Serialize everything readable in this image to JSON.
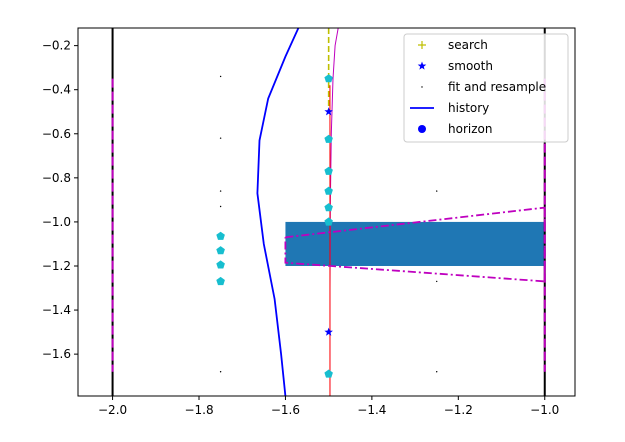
{
  "chart_data": {
    "type": "line",
    "title": "",
    "xlabel": "",
    "ylabel": "",
    "xlim": [
      -2.08,
      -0.93
    ],
    "ylim": [
      -1.79,
      -0.12
    ],
    "grid": false,
    "legend_position": "top-right",
    "xticks": [
      -2.0,
      -1.8,
      -1.6,
      -1.4,
      -1.2,
      -1.0
    ],
    "xtick_labels": [
      "−2.0",
      "−1.8",
      "−1.6",
      "−1.4",
      "−1.2",
      "−1.0"
    ],
    "yticks": [
      -0.2,
      -0.4,
      -0.6,
      -0.8,
      -1.0,
      -1.2,
      -1.4,
      -1.6
    ],
    "ytick_labels": [
      "−0.2",
      "−0.4",
      "−0.6",
      "−0.8",
      "−1.0",
      "−1.2",
      "−1.4",
      "−1.6"
    ],
    "legend": [
      {
        "label": "search",
        "marker": "plus",
        "color": "#bfbf00"
      },
      {
        "label": "smooth",
        "marker": "star",
        "color": "#0000ff"
      },
      {
        "label": "fit and resample",
        "marker": "dot",
        "color": "#000000"
      },
      {
        "label": "history",
        "marker": "line",
        "color": "#0000ff"
      },
      {
        "label": "horizon",
        "marker": "circle",
        "color": "#0000ff"
      }
    ],
    "rectangle": {
      "x0": -1.6,
      "x1": -1.0,
      "y0": -1.2,
      "y1": -1.0,
      "color": "#1f77b4"
    },
    "vertical_black_lines": [
      -2.0,
      -1.0
    ],
    "magenta_dashed_verticals": [
      {
        "x": -2.0,
        "y0": -1.68,
        "y1": -0.35
      },
      {
        "x": -1.0,
        "y0": -1.68,
        "y1": -0.35
      }
    ],
    "search_line": {
      "x": -1.5,
      "y0": -0.12,
      "y1": -0.5,
      "color": "#bfbf00"
    },
    "red_line": {
      "x": -1.497,
      "y0": -0.38,
      "y1": -1.79,
      "color": "#ff0000"
    },
    "history_curve": {
      "color": "#0000ff",
      "points": [
        [
          -1.57,
          -0.12
        ],
        [
          -1.6,
          -0.25
        ],
        [
          -1.64,
          -0.44
        ],
        [
          -1.66,
          -0.63
        ],
        [
          -1.665,
          -0.87
        ],
        [
          -1.65,
          -1.1
        ],
        [
          -1.625,
          -1.35
        ],
        [
          -1.61,
          -1.6
        ],
        [
          -1.6,
          -1.79
        ]
      ]
    },
    "magenta_thin_curve": {
      "color": "#bf00bf",
      "points": [
        [
          -1.478,
          -0.12
        ],
        [
          -1.485,
          -0.2
        ],
        [
          -1.49,
          -0.35
        ],
        [
          -1.494,
          -0.6
        ],
        [
          -1.496,
          -0.9
        ],
        [
          -1.497,
          -1.3
        ],
        [
          -1.497,
          -1.79
        ]
      ]
    },
    "magenta_dashdot_polygon": {
      "color": "#bf00bf",
      "points": [
        [
          -1.6,
          -1.07
        ],
        [
          -1.0,
          -0.935
        ],
        [
          -1.0,
          -1.27
        ],
        [
          -1.6,
          -1.185
        ],
        [
          -1.6,
          -1.07
        ]
      ]
    },
    "cyan_pentagons": {
      "color": "#17becf",
      "points": [
        [
          -1.5,
          -0.35
        ],
        [
          -1.5,
          -0.625
        ],
        [
          -1.5,
          -0.77
        ],
        [
          -1.5,
          -0.86
        ],
        [
          -1.5,
          -0.935
        ],
        [
          -1.5,
          -1.0
        ],
        [
          -1.5,
          -1.69
        ],
        [
          -1.75,
          -1.065
        ],
        [
          -1.75,
          -1.13
        ],
        [
          -1.75,
          -1.195
        ],
        [
          -1.75,
          -1.27
        ]
      ]
    },
    "smooth_stars": {
      "color": "#0000ff",
      "points": [
        [
          -1.5,
          -0.5
        ],
        [
          -1.5,
          -1.5
        ]
      ]
    },
    "fit_dots": {
      "color": "#000000",
      "points": [
        [
          -1.75,
          -0.34
        ],
        [
          -1.75,
          -0.62
        ],
        [
          -1.75,
          -0.86
        ],
        [
          -1.75,
          -0.93
        ],
        [
          -1.75,
          -1.68
        ],
        [
          -1.25,
          -0.86
        ],
        [
          -1.25,
          -1.27
        ],
        [
          -1.25,
          -1.68
        ]
      ]
    }
  }
}
